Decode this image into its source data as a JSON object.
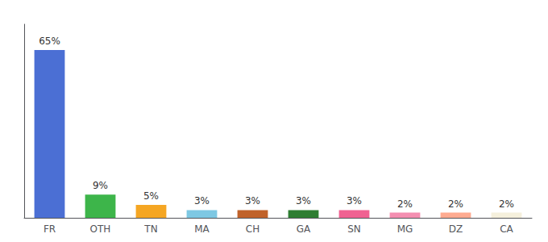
{
  "chart_data": {
    "type": "bar",
    "categories": [
      "FR",
      "OTH",
      "TN",
      "MA",
      "CH",
      "GA",
      "SN",
      "MG",
      "DZ",
      "CA"
    ],
    "values": [
      65,
      9,
      5,
      3,
      3,
      3,
      3,
      2,
      2,
      2
    ],
    "value_labels": [
      "65%",
      "9%",
      "5%",
      "3%",
      "3%",
      "3%",
      "3%",
      "2%",
      "2%",
      "2%"
    ],
    "colors": [
      "#4B6FD4",
      "#3DB54A",
      "#F5A623",
      "#7EC8E3",
      "#C0622A",
      "#2E7D32",
      "#F06292",
      "#F48FB1",
      "#FFAB91",
      "#F5F0DC"
    ],
    "ylim": [
      0,
      75
    ],
    "yticks": [],
    "grid": false,
    "data_labels": true,
    "tick_labels": "x"
  }
}
